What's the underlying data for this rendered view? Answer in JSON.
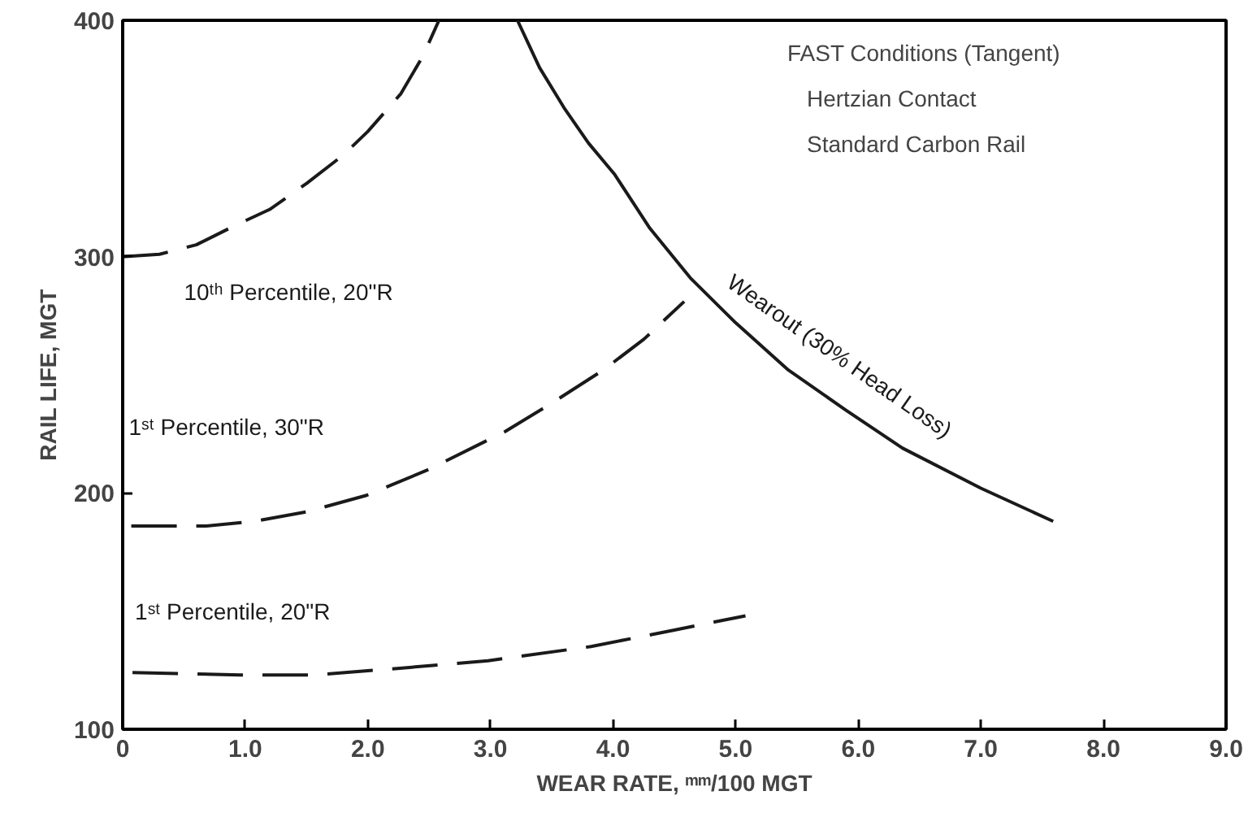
{
  "chart_data": {
    "type": "line",
    "xlabel": "WEAR RATE, ᵐᵐ/100 MGT",
    "ylabel": "RAIL LIFE, MGT",
    "xlim": [
      0,
      9
    ],
    "ylim": [
      100,
      400
    ],
    "xticks": [
      {
        "value": 0,
        "label": "0"
      },
      {
        "value": 1,
        "label": "1.0"
      },
      {
        "value": 2,
        "label": "2.0"
      },
      {
        "value": 3,
        "label": "3.0"
      },
      {
        "value": 4,
        "label": "4.0"
      },
      {
        "value": 5,
        "label": "5.0"
      },
      {
        "value": 6,
        "label": "6.0"
      },
      {
        "value": 7,
        "label": "7.0"
      },
      {
        "value": 8,
        "label": "8.0"
      },
      {
        "value": 9,
        "label": "9.0"
      }
    ],
    "yticks": [
      100,
      200,
      300,
      400
    ],
    "grid": false,
    "marker": "none",
    "series": [
      {
        "name": "10ᵗʰ Percentile, 20\"R",
        "color": "#1a1a1a",
        "line_style": "dashed",
        "x": [
          0,
          0.3,
          0.6,
          0.91,
          1.2,
          1.5,
          1.8,
          2.0,
          2.27,
          2.45,
          2.58
        ],
        "values": [
          300,
          301,
          305,
          313,
          320,
          331,
          343,
          353,
          369,
          385,
          400
        ]
      },
      {
        "name": "Wearout (30% Head Loss)",
        "color": "#1a1a1a",
        "line_style": "solid",
        "x": [
          3.22,
          3.4,
          3.6,
          3.8,
          4.01,
          4.3,
          4.63,
          5.0,
          5.43,
          5.9,
          6.36,
          7.0,
          7.59
        ],
        "values": [
          400,
          380,
          363,
          348,
          335,
          312,
          291,
          272,
          252,
          235,
          219,
          202,
          188
        ]
      },
      {
        "name": "1ˢᵗ Percentile, 30\"R",
        "color": "#1a1a1a",
        "line_style": "dashed",
        "x": [
          0.07,
          0.68,
          1.07,
          1.5,
          1.99,
          2.5,
          3.12,
          3.5,
          3.92,
          4.25,
          4.58
        ],
        "values": [
          186,
          186,
          188,
          192,
          199,
          210,
          226,
          238,
          252,
          265,
          281
        ]
      },
      {
        "name": "1ˢᵗ Percentile, 20\"R",
        "color": "#1a1a1a",
        "line_style": "dashed",
        "x": [
          0.08,
          0.96,
          1.57,
          2.3,
          2.98,
          3.82,
          4.5,
          5.08
        ],
        "values": [
          124,
          123,
          123,
          126,
          129,
          135,
          142,
          148
        ]
      }
    ],
    "annotations": [
      "FAST Conditions (Tangent)",
      "Hertzian Contact",
      "Standard Carbon Rail"
    ]
  }
}
